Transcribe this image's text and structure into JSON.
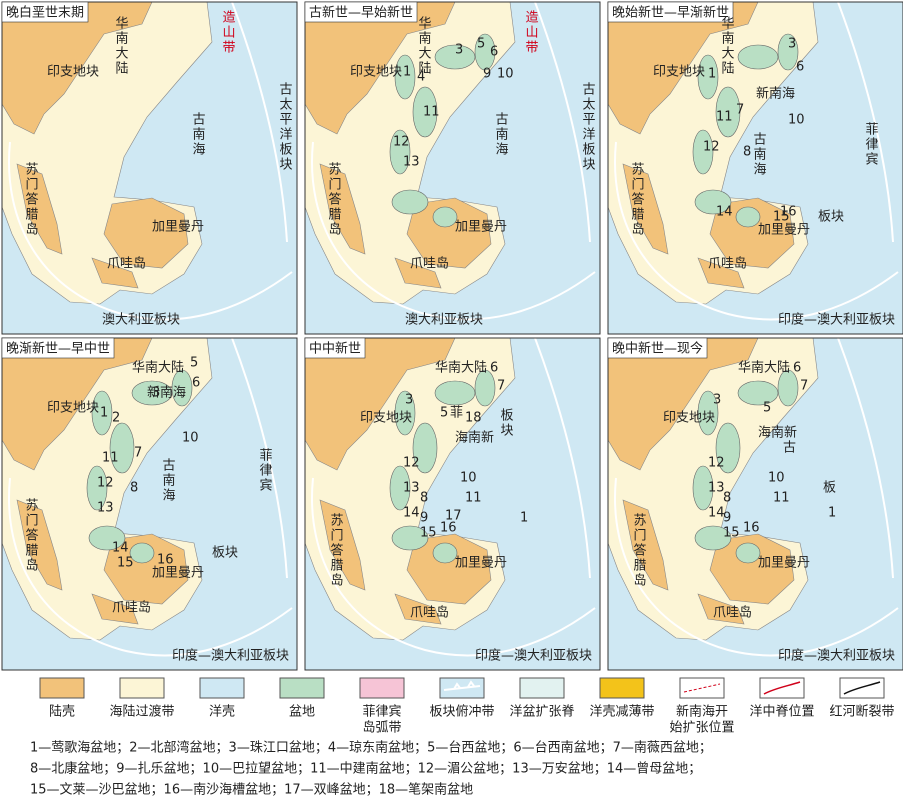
{
  "panels": [
    {
      "title": "晚白垩世末期",
      "labels": [
        "华南大陆",
        "印支地块",
        "苏门答腊岛",
        "加里曼丹",
        "爪哇岛",
        "澳大利亚板块",
        "古南海",
        "造山带",
        "古太平洋板块"
      ]
    },
    {
      "title": "古新世—早始新世",
      "labels": [
        "华南大陆",
        "印支地块",
        "苏门答腊岛",
        "加里曼丹",
        "爪哇岛",
        "澳大利亚板块",
        "古南海",
        "造山带",
        "古太平洋板块",
        "1",
        "3",
        "4",
        "5",
        "6",
        "9",
        "10",
        "11",
        "12",
        "13"
      ]
    },
    {
      "title": "晚始新世—早渐新世",
      "labels": [
        "华南大陆",
        "印支地块",
        "苏门答腊岛",
        "加里曼丹",
        "爪哇岛",
        "印度—澳大利亚板块",
        "古南海",
        "新南海",
        "菲律宾",
        "板块",
        "1",
        "3",
        "6",
        "7",
        "8",
        "10",
        "11",
        "12",
        "14",
        "15",
        "16"
      ]
    },
    {
      "title": "晚渐新世—早中世",
      "labels": [
        "华南大陆",
        "印支地块",
        "苏门答腊岛",
        "加里曼丹",
        "爪哇岛",
        "印度—澳大利亚板块",
        "古南海",
        "新南海",
        "菲律宾",
        "板块",
        "1",
        "2",
        "3",
        "5",
        "6",
        "7",
        "8",
        "10",
        "11",
        "12",
        "13",
        "14",
        "15",
        "16"
      ]
    },
    {
      "title": "中中新世",
      "labels": [
        "华南大陆",
        "印支地块",
        "苏门答腊岛",
        "加里曼丹",
        "爪哇岛",
        "印度—澳大利亚板块",
        "海南新",
        "菲",
        "板块",
        "1",
        "3",
        "5",
        "6",
        "7",
        "8",
        "9",
        "10",
        "11",
        "12",
        "13",
        "14",
        "15",
        "16",
        "17",
        "18"
      ]
    },
    {
      "title": "晚中新世—现今",
      "labels": [
        "华南大陆",
        "印支地块",
        "苏门答腊岛",
        "加里曼丹",
        "爪哇岛",
        "印度—澳大利亚板块",
        "海南新",
        "古",
        "板",
        "1",
        "3",
        "5",
        "6",
        "7",
        "8",
        "9",
        "10",
        "11",
        "12",
        "13",
        "14",
        "15",
        "16"
      ]
    }
  ],
  "legend": [
    {
      "lines": [
        "陆壳"
      ]
    },
    {
      "lines": [
        "海陆过渡带"
      ]
    },
    {
      "lines": [
        "洋壳"
      ]
    },
    {
      "lines": [
        "盆地"
      ]
    },
    {
      "lines": [
        "菲律宾",
        "岛弧带"
      ]
    },
    {
      "lines": [
        "板块俯冲带"
      ]
    },
    {
      "lines": [
        "洋盆扩张脊"
      ]
    },
    {
      "lines": [
        "洋壳减薄带"
      ]
    },
    {
      "lines": [
        "新南海开",
        "始扩张位置"
      ]
    },
    {
      "lines": [
        "洋中脊位置"
      ]
    },
    {
      "lines": [
        "红河断裂带"
      ]
    }
  ],
  "basin_list": [
    "1—莺歌海盆地；2—北部湾盆地；3—珠江口盆地；4—琼东南盆地；5—台西盆地；6—台西南盆地；7—南薇西盆地；",
    "8—北康盆地；9—扎乐盆地；10—巴拉望盆地；11—中建南盆地；12—湄公盆地；13—万安盆地；14—曾母盆地；",
    "15—文莱—沙巴盆地；16—南沙海槽盆地；17—双峰盆地；18—笔架南盆地"
  ]
}
